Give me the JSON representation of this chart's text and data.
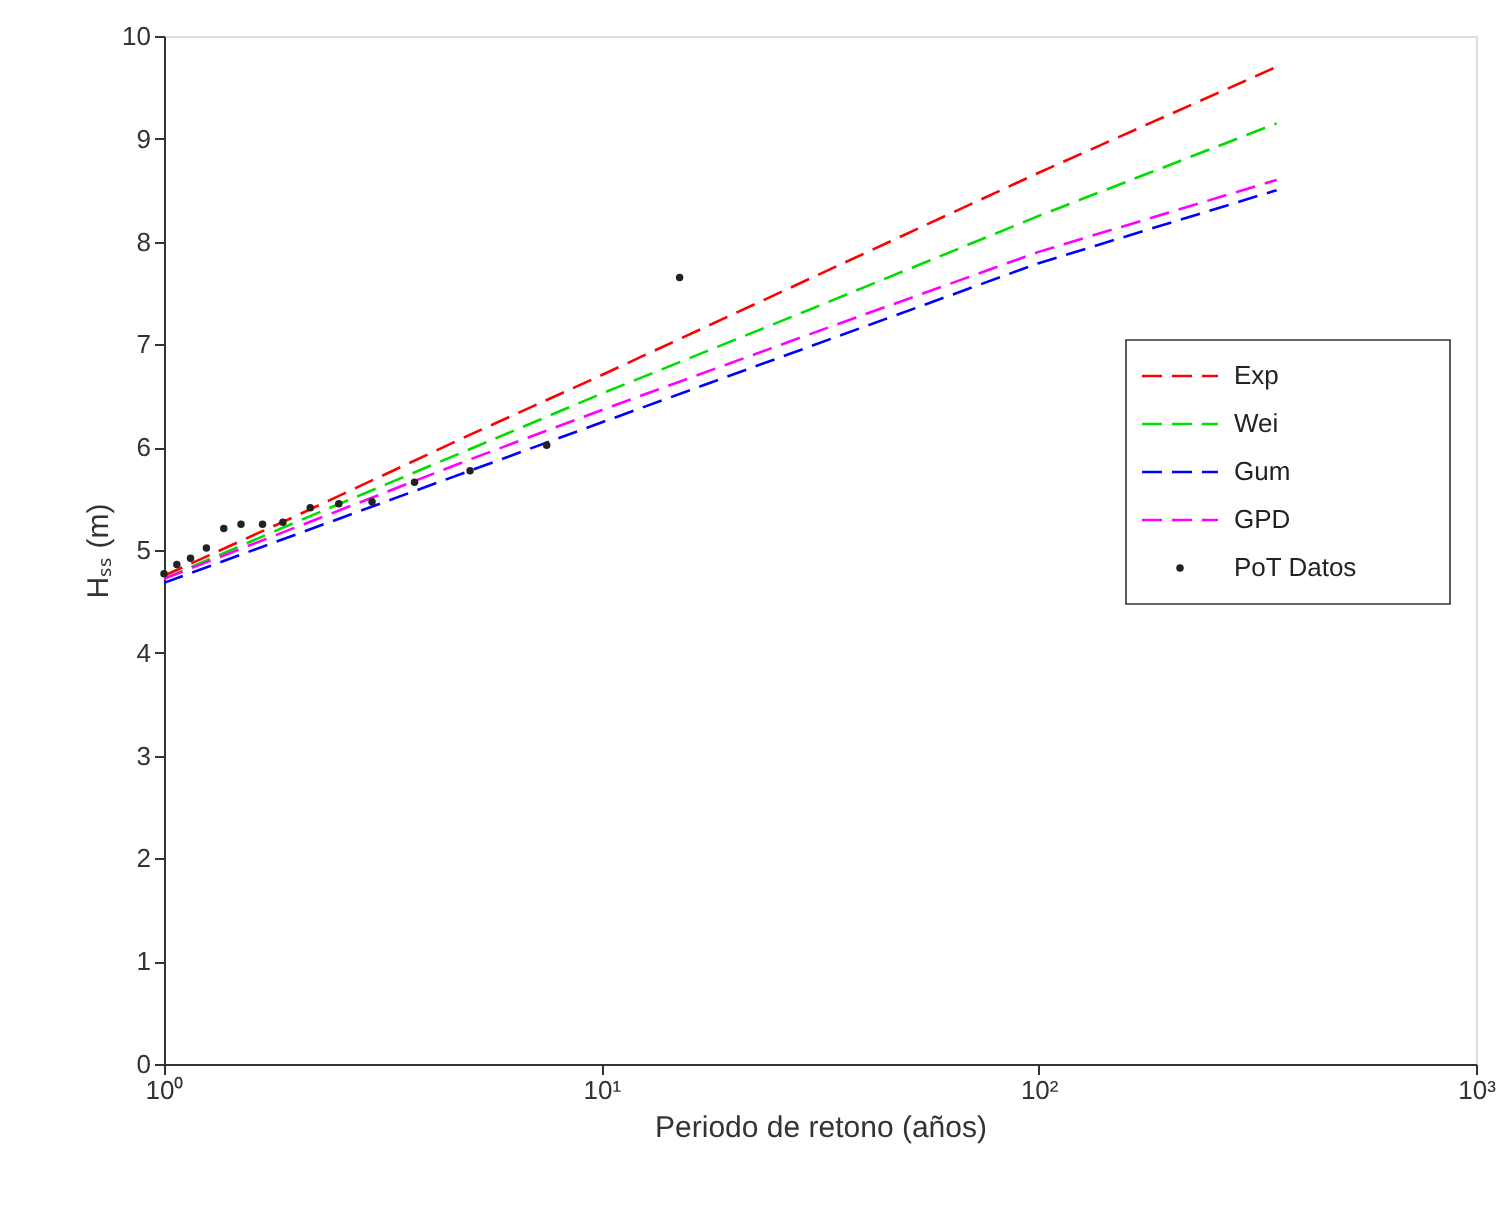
{
  "chart_data": {
    "type": "line",
    "xlabel": "Periodo de retono (años)",
    "ylabel": "Hₛₛ (m)",
    "xlim": [
      1,
      1000
    ],
    "ylim": [
      0,
      10
    ],
    "xticks": [
      {
        "value": 1,
        "label": "10⁰"
      },
      {
        "value": 10,
        "label": "10¹"
      },
      {
        "value": 100,
        "label": "10²"
      },
      {
        "value": 1000,
        "label": "10³"
      }
    ],
    "log": "x",
    "yticks": [
      0,
      1,
      2,
      3,
      4,
      5,
      6,
      7,
      8,
      9,
      10
    ],
    "grid": false,
    "legend": "right",
    "line_style": "dashed",
    "marker": "none",
    "series": [
      {
        "name": "Exp",
        "color": "#ff0000",
        "x": [
          1,
          2,
          5,
          10,
          30,
          100,
          350
        ],
        "values": [
          4.75,
          5.33,
          6.12,
          6.7,
          7.64,
          8.67,
          9.7
        ]
      },
      {
        "name": "Wei",
        "color": "#00dd00",
        "x": [
          1,
          2,
          5,
          10,
          30,
          100,
          350
        ],
        "values": [
          4.72,
          5.27,
          5.98,
          6.52,
          7.34,
          8.25,
          9.15
        ]
      },
      {
        "name": "Gum",
        "color": "#0000ff",
        "x": [
          1,
          2,
          5,
          10,
          30,
          100,
          350
        ],
        "values": [
          4.68,
          5.15,
          5.77,
          6.24,
          6.98,
          7.79,
          8.5
        ]
      },
      {
        "name": "GPD",
        "color": "#ff00ff",
        "x": [
          1,
          2,
          5,
          10,
          30,
          100,
          350
        ],
        "values": [
          4.72,
          5.22,
          5.88,
          6.36,
          7.1,
          7.9,
          8.6
        ]
      },
      {
        "name": "PoT Datos",
        "type": "scatter",
        "marker": "circle",
        "color": "#222222",
        "x": [
          1.0,
          1.07,
          1.15,
          1.25,
          1.37,
          1.5,
          1.68,
          1.87,
          2.16,
          2.51,
          2.99,
          3.74,
          5.01,
          7.5,
          15.1
        ],
        "values": [
          4.77,
          4.86,
          4.92,
          5.02,
          5.21,
          5.25,
          5.25,
          5.27,
          5.41,
          5.45,
          5.47,
          5.66,
          5.77,
          6.02,
          7.65
        ]
      }
    ]
  }
}
